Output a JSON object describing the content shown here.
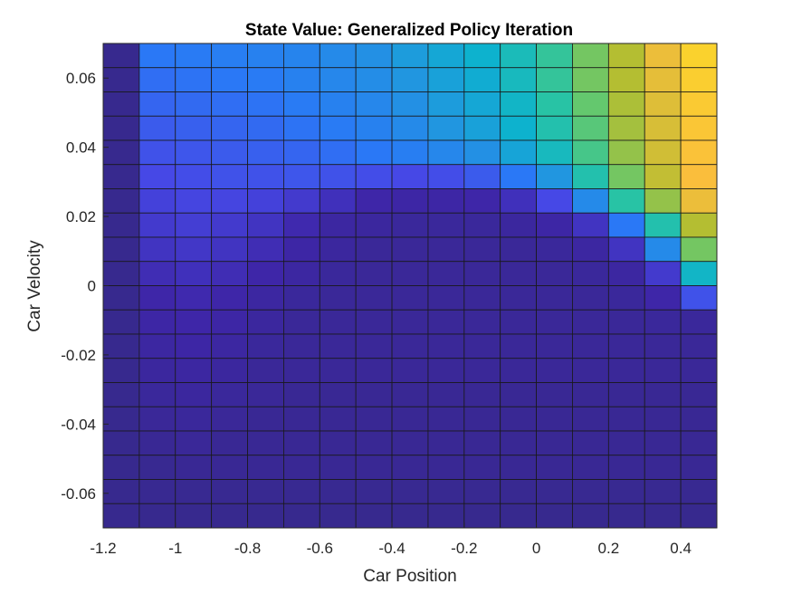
{
  "chart_data": {
    "type": "heatmap",
    "title": "State Value: Generalized Policy Iteration",
    "xlabel": "Car Position",
    "ylabel": "Car Velocity",
    "xlim": [
      -1.2,
      0.5
    ],
    "ylim": [
      -0.07,
      0.07
    ],
    "x_ticks": [
      -1.2,
      -1,
      -0.8,
      -0.6,
      -0.4,
      -0.2,
      0,
      0.2,
      0.4
    ],
    "x_tick_labels": [
      "-1.2",
      "-1",
      "-0.8",
      "-0.6",
      "-0.4",
      "-0.2",
      "0",
      "0.2",
      "0.4"
    ],
    "y_ticks": [
      -0.06,
      -0.04,
      -0.02,
      0,
      0.02,
      0.04,
      0.06
    ],
    "y_tick_labels": [
      "-0.06",
      "-0.04",
      "-0.02",
      "0",
      "0.02",
      "0.04",
      "0.06"
    ],
    "colormap": "parula",
    "x_edges": [
      -1.2,
      -1.1,
      -1.0,
      -0.9,
      -0.8,
      -0.7,
      -0.6,
      -0.5,
      -0.4,
      -0.3,
      -0.2,
      -0.1,
      0.0,
      0.1,
      0.2,
      0.3,
      0.4,
      0.5
    ],
    "y_edges": [
      -0.07,
      -0.063,
      -0.056,
      -0.049,
      -0.042,
      -0.035,
      -0.028,
      -0.021,
      -0.014,
      -0.007,
      0.0,
      0.007,
      0.014,
      0.021,
      0.028,
      0.035,
      0.042,
      0.049,
      0.056,
      0.063,
      0.07
    ],
    "values_note": "normalized colour level (0 = darkest blue, 1 = brightest yellow); rows listed from top (highest velocity) to bottom",
    "values": [
      [
        0.02,
        0.3,
        0.31,
        0.32,
        0.33,
        0.34,
        0.36,
        0.38,
        0.42,
        0.46,
        0.5,
        0.55,
        0.62,
        0.72,
        0.8,
        0.88,
        0.95
      ],
      [
        0.02,
        0.28,
        0.29,
        0.3,
        0.31,
        0.33,
        0.35,
        0.37,
        0.4,
        0.44,
        0.48,
        0.54,
        0.62,
        0.72,
        0.8,
        0.87,
        0.94
      ],
      [
        0.02,
        0.26,
        0.27,
        0.28,
        0.29,
        0.31,
        0.33,
        0.35,
        0.38,
        0.42,
        0.46,
        0.52,
        0.6,
        0.7,
        0.79,
        0.86,
        0.93
      ],
      [
        0.02,
        0.24,
        0.25,
        0.26,
        0.27,
        0.29,
        0.31,
        0.33,
        0.36,
        0.4,
        0.44,
        0.5,
        0.58,
        0.68,
        0.78,
        0.85,
        0.92
      ],
      [
        0.02,
        0.22,
        0.23,
        0.24,
        0.25,
        0.26,
        0.28,
        0.3,
        0.32,
        0.35,
        0.38,
        0.45,
        0.54,
        0.65,
        0.76,
        0.84,
        0.91
      ],
      [
        0.02,
        0.2,
        0.21,
        0.22,
        0.22,
        0.23,
        0.22,
        0.21,
        0.2,
        0.21,
        0.24,
        0.3,
        0.4,
        0.58,
        0.72,
        0.82,
        0.9
      ],
      [
        0.02,
        0.18,
        0.19,
        0.19,
        0.18,
        0.16,
        0.13,
        0.1,
        0.09,
        0.09,
        0.1,
        0.13,
        0.2,
        0.36,
        0.6,
        0.76,
        0.88
      ],
      [
        0.02,
        0.16,
        0.17,
        0.16,
        0.14,
        0.11,
        0.08,
        0.07,
        0.06,
        0.06,
        0.06,
        0.07,
        0.09,
        0.14,
        0.3,
        0.58,
        0.8
      ],
      [
        0.02,
        0.14,
        0.15,
        0.14,
        0.12,
        0.09,
        0.07,
        0.05,
        0.05,
        0.05,
        0.05,
        0.05,
        0.06,
        0.08,
        0.14,
        0.36,
        0.72
      ],
      [
        0.02,
        0.12,
        0.13,
        0.12,
        0.1,
        0.08,
        0.06,
        0.05,
        0.05,
        0.05,
        0.05,
        0.05,
        0.05,
        0.06,
        0.08,
        0.16,
        0.52
      ],
      [
        0.02,
        0.1,
        0.11,
        0.1,
        0.08,
        0.06,
        0.05,
        0.05,
        0.05,
        0.05,
        0.05,
        0.05,
        0.05,
        0.05,
        0.06,
        0.1,
        0.22
      ],
      [
        0.02,
        0.09,
        0.1,
        0.09,
        0.07,
        0.05,
        0.05,
        0.05,
        0.05,
        0.05,
        0.05,
        0.05,
        0.05,
        0.05,
        0.05,
        0.06,
        0.06
      ],
      [
        0.02,
        0.08,
        0.09,
        0.08,
        0.06,
        0.05,
        0.05,
        0.05,
        0.05,
        0.05,
        0.05,
        0.05,
        0.05,
        0.05,
        0.05,
        0.05,
        0.05
      ],
      [
        0.02,
        0.07,
        0.08,
        0.07,
        0.05,
        0.05,
        0.05,
        0.05,
        0.05,
        0.05,
        0.05,
        0.05,
        0.05,
        0.05,
        0.05,
        0.05,
        0.05
      ],
      [
        0.02,
        0.06,
        0.07,
        0.06,
        0.05,
        0.04,
        0.04,
        0.04,
        0.04,
        0.04,
        0.04,
        0.04,
        0.04,
        0.04,
        0.04,
        0.04,
        0.04
      ],
      [
        0.02,
        0.05,
        0.06,
        0.05,
        0.04,
        0.04,
        0.04,
        0.04,
        0.04,
        0.04,
        0.04,
        0.04,
        0.04,
        0.04,
        0.04,
        0.04,
        0.04
      ],
      [
        0.02,
        0.04,
        0.05,
        0.04,
        0.04,
        0.04,
        0.04,
        0.04,
        0.04,
        0.04,
        0.04,
        0.04,
        0.04,
        0.04,
        0.04,
        0.04,
        0.04
      ],
      [
        0.02,
        0.03,
        0.04,
        0.04,
        0.04,
        0.04,
        0.04,
        0.04,
        0.04,
        0.04,
        0.04,
        0.04,
        0.04,
        0.04,
        0.04,
        0.04,
        0.04
      ],
      [
        0.02,
        0.03,
        0.03,
        0.03,
        0.03,
        0.03,
        0.03,
        0.03,
        0.03,
        0.03,
        0.03,
        0.03,
        0.03,
        0.03,
        0.03,
        0.03,
        0.03
      ],
      [
        0.02,
        0.02,
        0.02,
        0.02,
        0.02,
        0.02,
        0.02,
        0.02,
        0.02,
        0.02,
        0.02,
        0.02,
        0.02,
        0.02,
        0.02,
        0.02,
        0.02
      ]
    ],
    "grid": false,
    "legend": "none"
  }
}
